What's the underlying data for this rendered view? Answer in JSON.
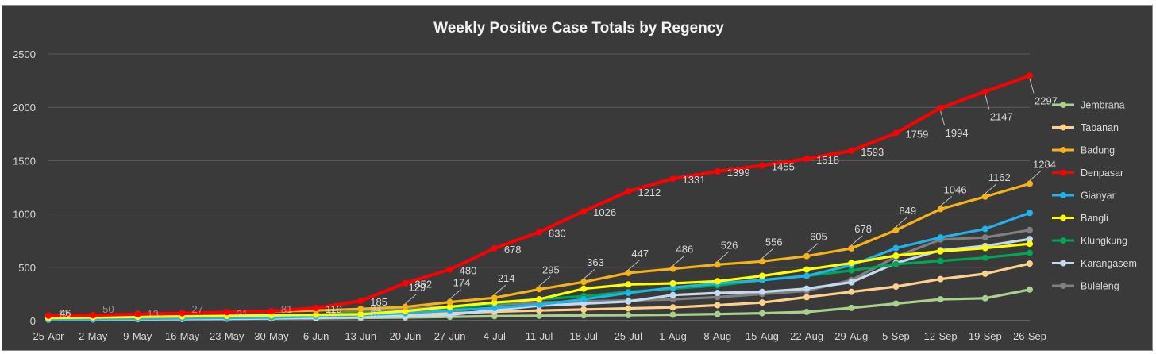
{
  "chart_data": {
    "type": "line",
    "title": "Weekly Positive Case Totals by Regency",
    "xlabel": "",
    "ylabel": "",
    "ylim": [
      0,
      2500
    ],
    "yticks": [
      0,
      500,
      1000,
      1500,
      2000,
      2500
    ],
    "grid": true,
    "legend_position": "right",
    "categories": [
      "25-Apr",
      "2-May",
      "9-May",
      "16-May",
      "23-May",
      "30-May",
      "6-Jun",
      "13-Jun",
      "20-Jun",
      "27-Jun",
      "4-Jul",
      "11-Jul",
      "18-Jul",
      "25-Jul",
      "1-Aug",
      "8-Aug",
      "15-Aug",
      "22-Aug",
      "29-Aug",
      "5-Sep",
      "12-Sep",
      "19-Sep",
      "26-Sep"
    ],
    "series": [
      {
        "name": "Jembrana",
        "color": "#a9d18e",
        "values": [
          12,
          12,
          14,
          16,
          18,
          20,
          22,
          26,
          30,
          36,
          42,
          46,
          50,
          52,
          56,
          62,
          70,
          82,
          120,
          160,
          200,
          210,
          292
        ]
      },
      {
        "name": "Tabanan",
        "color": "#ffd08a",
        "values": [
          14,
          16,
          18,
          20,
          22,
          25,
          28,
          35,
          50,
          70,
          85,
          95,
          105,
          115,
          125,
          145,
          170,
          220,
          270,
          320,
          390,
          440,
          535
        ]
      },
      {
        "name": "Badung",
        "color": "#f5b21b",
        "values": [
          46,
          50,
          62,
          70,
          78,
          87,
          95,
          110,
          129,
          174,
          214,
          295,
          363,
          447,
          486,
          526,
          556,
          605,
          678,
          849,
          1046,
          1162,
          1284
        ]
      },
      {
        "name": "Denpasar",
        "color": "#ff0000",
        "values": [
          46,
          50,
          60,
          70,
          80,
          90,
          119,
          185,
          352,
          480,
          678,
          830,
          1026,
          1212,
          1331,
          1399,
          1455,
          1518,
          1593,
          1759,
          1994,
          2147,
          2297
        ]
      },
      {
        "name": "Gianyar",
        "color": "#1fb3ec",
        "values": [
          12,
          14,
          18,
          22,
          26,
          30,
          40,
          52,
          70,
          95,
          120,
          150,
          200,
          260,
          310,
          350,
          380,
          420,
          520,
          680,
          780,
          860,
          1010
        ]
      },
      {
        "name": "Bangli",
        "color": "#ffff00",
        "values": [
          25,
          30,
          35,
          40,
          45,
          50,
          55,
          60,
          90,
          130,
          170,
          200,
          300,
          340,
          350,
          370,
          420,
          480,
          540,
          610,
          650,
          680,
          720
        ]
      },
      {
        "name": "Klungkung",
        "color": "#00a651",
        "values": [
          20,
          25,
          30,
          35,
          40,
          45,
          55,
          70,
          90,
          110,
          160,
          200,
          230,
          270,
          300,
          330,
          380,
          420,
          470,
          530,
          560,
          590,
          635
        ]
      },
      {
        "name": "Karangasem",
        "color": "#c5d9f1",
        "values": [
          10,
          12,
          14,
          16,
          20,
          24,
          28,
          34,
          40,
          55,
          100,
          140,
          160,
          180,
          240,
          260,
          270,
          300,
          360,
          540,
          660,
          700,
          765
        ]
      },
      {
        "name": "Buleleng",
        "color": "#7f7f7f",
        "values": [
          10,
          12,
          18,
          24,
          28,
          34,
          48,
          94,
          110,
          130,
          150,
          170,
          180,
          190,
          200,
          220,
          250,
          280,
          380,
          600,
          760,
          780,
          850
        ]
      }
    ],
    "data_labels": [
      {
        "series": "Denpasar",
        "values": [
          46,
          119,
          185,
          352,
          480,
          678,
          830,
          1026,
          1212,
          1331,
          1399,
          1455,
          1518,
          1593,
          1759,
          1994,
          2147,
          2297
        ]
      },
      {
        "series": "Badung",
        "values": [
          129,
          174,
          214,
          295,
          363,
          447,
          486,
          526,
          556,
          605,
          678,
          849,
          1046,
          1162,
          1284
        ]
      }
    ],
    "faint_labels": [
      "12",
      "50",
      "13",
      "27",
      "21",
      "81",
      "25",
      "77",
      "87",
      "94"
    ]
  }
}
